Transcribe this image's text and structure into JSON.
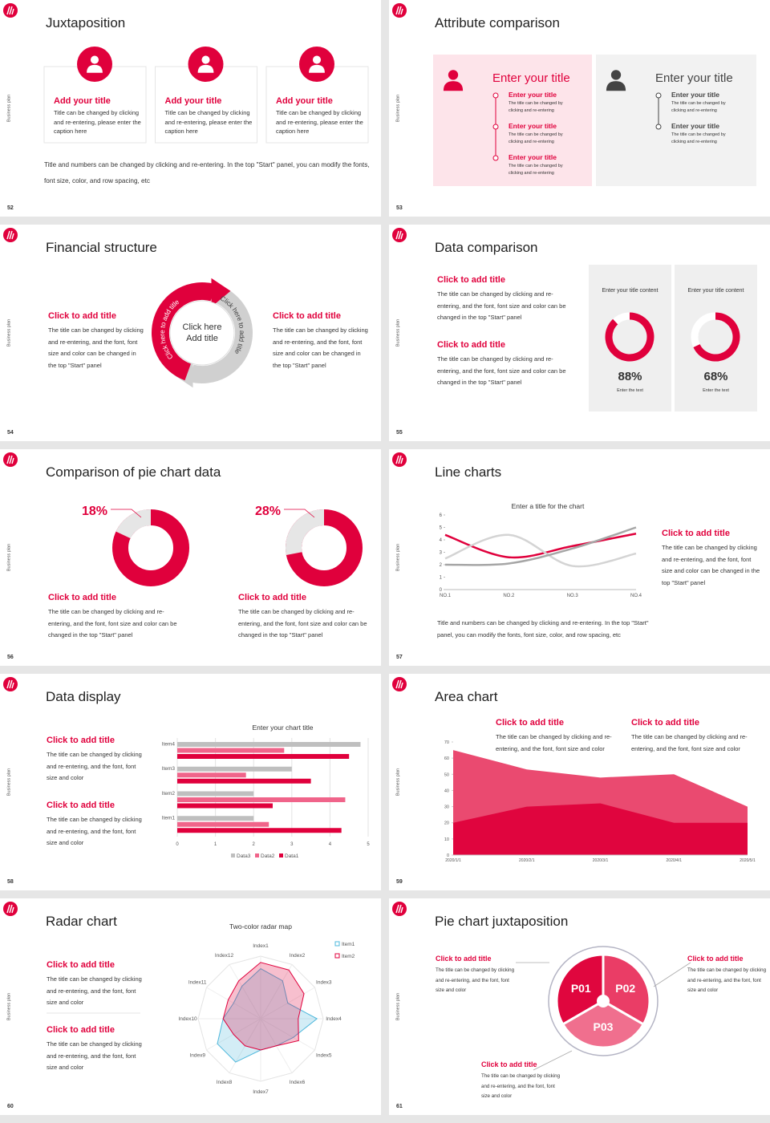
{
  "side_label": "Business plan",
  "slides": [
    {
      "number": 52,
      "title": "Juxtaposition",
      "cards": [
        {
          "title": "Add your title",
          "text": "Title can be changed by clicking and re-entering, please enter the caption here"
        },
        {
          "title": "Add your title",
          "text": "Title can be changed by clicking and re-entering, please enter the caption here"
        },
        {
          "title": "Add your title",
          "text": "Title can be changed by clicking and re-entering, please enter the caption here"
        }
      ],
      "note": "Title and numbers can be changed by clicking and re-entering. In the top \"Start\" panel, you can modify the fonts, font size, color, and row spacing, etc"
    },
    {
      "number": 53,
      "title": "Attribute comparison",
      "panels": [
        {
          "heading": "Enter your title",
          "items": [
            {
              "title": "Enter your title",
              "text": "The title can be changed by clicking and re-entering"
            },
            {
              "title": "Enter your title",
              "text": "The title can be changed by clicking and re-entering"
            },
            {
              "title": "Enter your title",
              "text": "The title can be changed by clicking and re-entering"
            }
          ]
        },
        {
          "heading": "Enter your title",
          "items": [
            {
              "title": "Enter your title",
              "text": "The title can be changed by clicking and re-entering"
            },
            {
              "title": "Enter your title",
              "text": "The title can be changed by clicking and re-entering"
            }
          ]
        }
      ]
    },
    {
      "number": 54,
      "title": "Financial structure",
      "left": {
        "title": "Click to add title",
        "text": "The title can be changed by clicking and re-entering, and the font, font size and color can be changed in the top \"Start\" panel"
      },
      "right": {
        "title": "Click to add title",
        "text": "The title can be changed by clicking and re-entering, and the font, font size and color can be changed in the top \"Start\" panel"
      },
      "center": "Click here Add title",
      "arc_labels": [
        "Click here to add title",
        "Click here to add title"
      ]
    },
    {
      "number": 55,
      "title": "Data comparison",
      "items": [
        {
          "title": "Click to add title",
          "text": "The title can be changed by clicking and re-entering, and the font, font size and color can be changed in the top \"Start\" panel"
        },
        {
          "title": "Click to add title",
          "text": "The title can be changed by clicking and re-entering, and the font, font size and color can be changed in the top \"Start\" panel"
        }
      ],
      "donuts": [
        {
          "heading": "Enter your title content",
          "value": 88,
          "value_label": "88%",
          "caption": "Enter the text"
        },
        {
          "heading": "Enter your title content",
          "value": 68,
          "value_label": "68%",
          "caption": "Enter the text"
        }
      ]
    },
    {
      "number": 56,
      "title": "Comparison of pie chart data",
      "pies": [
        {
          "value": 18,
          "value_label": "18%",
          "title": "Click to add title",
          "text": "The title can be changed by clicking and re-entering, and the font, font size and color can be changed in the top \"Start\" panel"
        },
        {
          "value": 28,
          "value_label": "28%",
          "title": "Click to add title",
          "text": "The title can be changed by clicking and re-entering, and the font, font size and color can be changed in the top \"Start\" panel"
        }
      ]
    },
    {
      "number": 57,
      "title": "Line charts",
      "chart": {
        "type": "line",
        "title": "Enter a title for the chart",
        "categories": [
          "NO.1",
          "NO.2",
          "NO.3",
          "NO.4"
        ],
        "ylim": [
          0,
          6
        ],
        "yticks": [
          0,
          1,
          2,
          3,
          4,
          5,
          6
        ],
        "series": [
          {
            "color": "#e0003c",
            "values": [
              4.4,
              2.6,
              3.5,
              4.5
            ]
          },
          {
            "color": "#d4d4d4",
            "values": [
              2.5,
              4.4,
              1.9,
              2.9
            ]
          },
          {
            "color": "#a6a6a6",
            "values": [
              2.0,
              2.1,
              3.3,
              5.0
            ]
          }
        ]
      },
      "side": {
        "title": "Click to add title",
        "text": "The title can be changed by clicking and re-entering, and the font, font size and color can be changed in the top \"Start\" panel"
      },
      "note": "Title and numbers can be changed by clicking and re-entering. In the top \"Start\" panel, you can modify the fonts, font size, color, and row spacing, etc"
    },
    {
      "number": 58,
      "title": "Data display",
      "items": [
        {
          "title": "Click to add title",
          "text": "The title can be changed by clicking and re-entering, and the font, font size and color"
        },
        {
          "title": "Click to add title",
          "text": "The title can be changed by clicking and re-entering, and the font, font size and color"
        }
      ],
      "chart": {
        "type": "bar",
        "title": "Enter your chart title",
        "categories": [
          "Item1",
          "Item2",
          "Item3",
          "Item4"
        ],
        "xlim": [
          0,
          5
        ],
        "xticks": [
          0,
          1,
          2,
          3,
          4,
          5
        ],
        "grid": true,
        "series": [
          {
            "name": "Data3",
            "color": "#bfbfbf",
            "values": [
              2.0,
              2.0,
              3.0,
              4.8
            ]
          },
          {
            "name": "Data2",
            "color": "#f0648a",
            "values": [
              2.4,
              4.4,
              1.8,
              2.8
            ]
          },
          {
            "name": "Data1",
            "color": "#e0003c",
            "values": [
              4.3,
              2.5,
              3.5,
              4.5
            ]
          }
        ]
      }
    },
    {
      "number": 59,
      "title": "Area chart",
      "items": [
        {
          "title": "Click to add title",
          "text": "The title can be changed by clicking and re-entering, and the font, font size and color"
        },
        {
          "title": "Click to add title",
          "text": "The title can be changed by clicking and re-entering, and the font, font size and color"
        }
      ],
      "chart": {
        "type": "area",
        "categories": [
          "2020/1/1",
          "2020/2/1",
          "2020/3/1",
          "2020/4/1",
          "2020/5/1"
        ],
        "ylim": [
          0,
          70
        ],
        "yticks": [
          0,
          10,
          20,
          30,
          40,
          50,
          60,
          70
        ],
        "series": [
          {
            "color": "#ea4a70",
            "values": [
              65,
              53,
              48,
              50,
              30
            ]
          },
          {
            "color": "#e0053e",
            "values": [
              20,
              30,
              32,
              20,
              20
            ]
          }
        ]
      }
    },
    {
      "number": 60,
      "title": "Radar chart",
      "items": [
        {
          "title": "Click to add title",
          "text": "The title can be changed by clicking and re-entering, and the font, font size and color"
        },
        {
          "title": "Click to add title",
          "text": "The title can be changed by clicking and re-entering, and the font, font size and color"
        }
      ],
      "chart": {
        "type": "radar",
        "title": "Two-color radar map",
        "categories": [
          "Index1",
          "Index2",
          "Index3",
          "Index4",
          "Index5",
          "Index6",
          "Index7",
          "Index8",
          "Index9",
          "Index10",
          "Index11",
          "Index12"
        ],
        "rlim": [
          0,
          10
        ],
        "legend": "top-right",
        "series": [
          {
            "name": "Item1",
            "color": "#4fb8dc",
            "values": [
              8,
              7,
              5,
              9,
              6,
              5,
              5,
              8,
              8,
              6,
              5,
              6
            ]
          },
          {
            "name": "Item2",
            "color": "#e0003c",
            "values": [
              9,
              9,
              8,
              6,
              7,
              5,
              5,
              5,
              5,
              6,
              6,
              7
            ]
          }
        ]
      }
    },
    {
      "number": 61,
      "title": "Pie chart juxtaposition",
      "items": [
        {
          "title": "Click to add title",
          "text": "The title can be changed by clicking and re-entering, and the font, font size and color"
        },
        {
          "title": "Click to add title",
          "text": "The title can be changed by clicking and re-entering, and the font, font size and color"
        },
        {
          "title": "Click to add title",
          "text": "The title can be changed by clicking and re-entering, and the font, font size and color"
        }
      ],
      "segments": [
        "P01",
        "P02",
        "P03"
      ]
    }
  ]
}
